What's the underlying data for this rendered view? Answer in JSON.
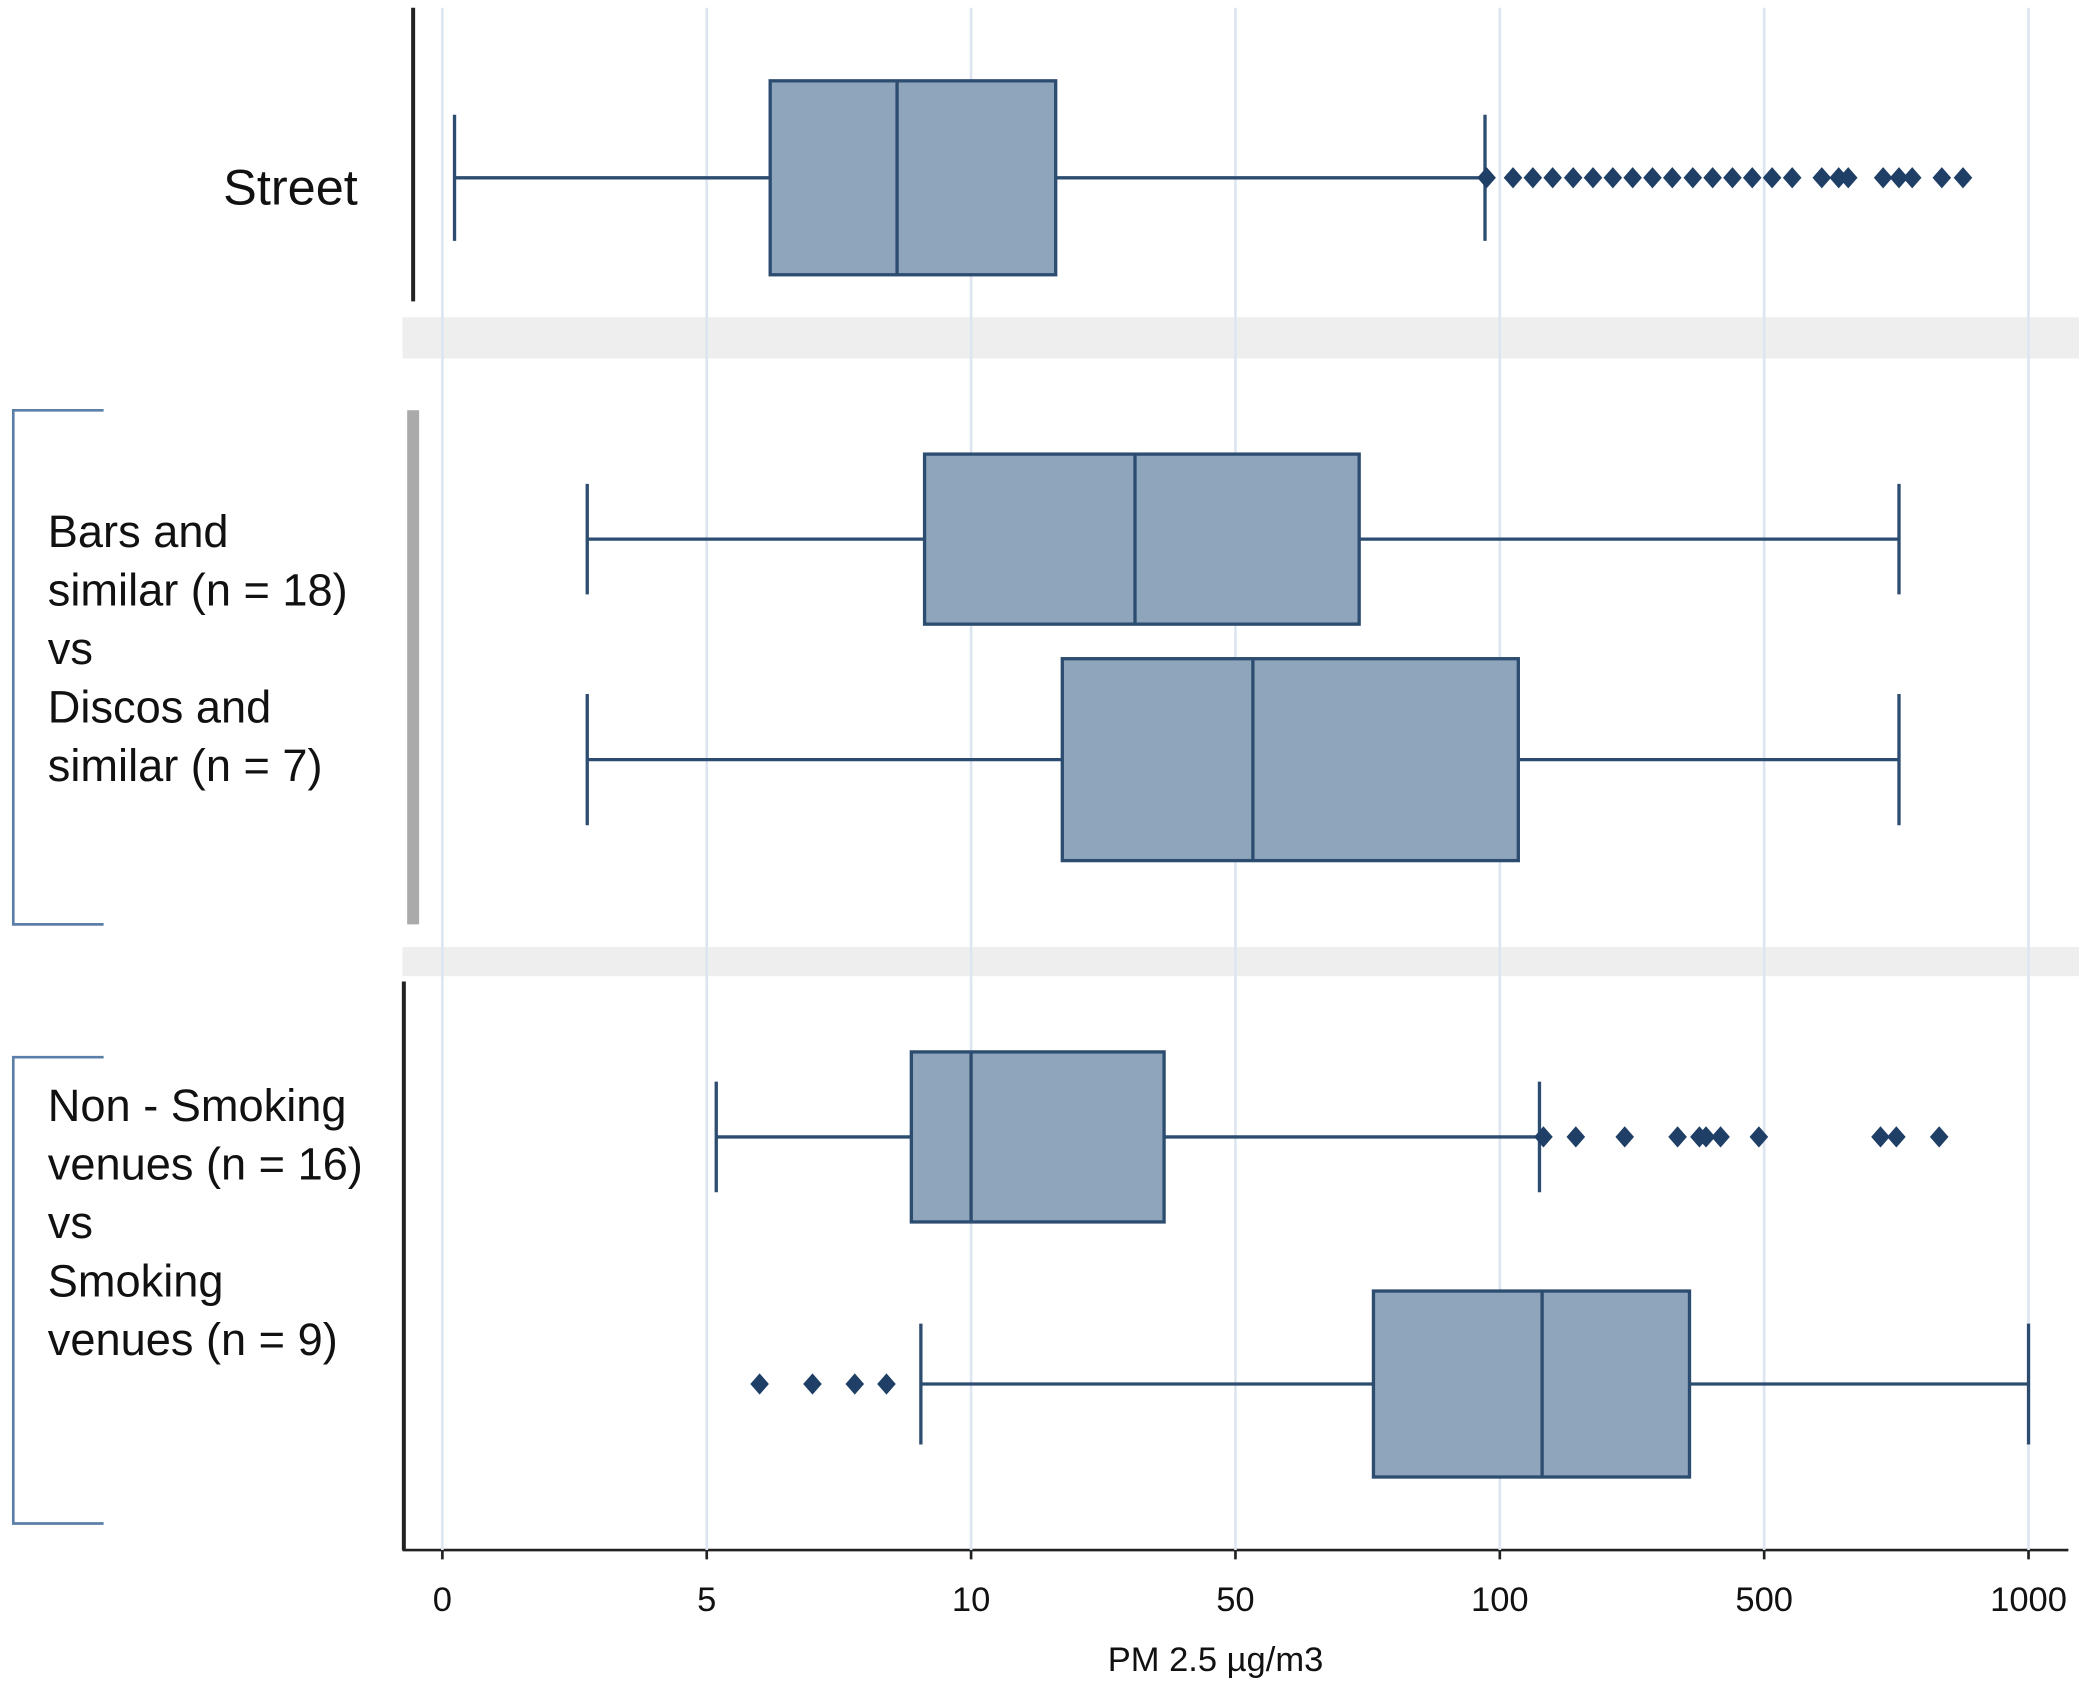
{
  "chart_data": {
    "type": "boxplot",
    "xlabel": "PM 2.5 µg/m3",
    "xlim": [
      0,
      1000
    ],
    "xticks": [
      0,
      5,
      10,
      50,
      100,
      500,
      1000
    ],
    "grid": true,
    "box_color": "#8fa5bc",
    "line_color": "#2d4d70",
    "outlier_color": "#1f3f66",
    "groups": [
      {
        "label": [
          "Street"
        ],
        "boxes": [
          {
            "whisker_low": 0.23,
            "q1": 6.2,
            "median": 8.6,
            "q3": 22.8,
            "whisker_high": 97.2,
            "outliers": [
              97.5,
              120,
              150,
              180,
              211,
              241,
              271,
              301,
              331,
              361,
              392,
              422,
              452,
              482,
              515,
              553,
              609,
              641,
              659,
              725,
              755,
              780,
              836,
              876
            ]
          }
        ]
      },
      {
        "label": [
          "Bars and",
          "similar (n = 18)",
          "vs",
          "Discos and",
          "similar (n = 7)"
        ],
        "boxes": [
          {
            "whisker_low": 2.74,
            "q1": 9.12,
            "median": 34.8,
            "q3": 73.4,
            "whisker_high": 755,
            "outliers": []
          },
          {
            "whisker_low": 2.74,
            "q1": 23.8,
            "median": 53.3,
            "q3": 128,
            "whisker_high": 755,
            "outliers": []
          }
        ]
      },
      {
        "label": [
          "Non - Smoking",
          "venues (n = 16)",
          "vs",
          "Smoking",
          "venues (n = 9)"
        ],
        "boxes": [
          {
            "whisker_low": 5.18,
            "q1": 8.87,
            "median": 10,
            "q3": 39.2,
            "whisker_high": 160,
            "outliers": [
              166,
              215,
              289,
              369,
              402,
              412,
              434,
              492,
              720,
              750,
              831
            ]
          },
          {
            "whisker_low": 9.05,
            "q1": 76.1,
            "median": 164,
            "q3": 387,
            "whisker_high": 1000,
            "outliers": [
              6.0,
              7.0,
              7.8,
              8.4
            ]
          }
        ]
      }
    ]
  }
}
